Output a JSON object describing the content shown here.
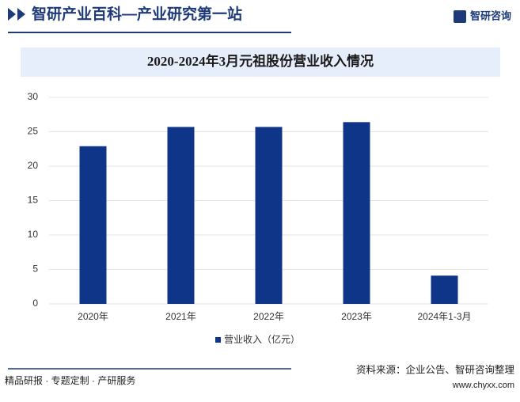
{
  "header": {
    "slogan": "智研产业百科—产业研究第一站",
    "brand": "智研咨询"
  },
  "chart_data": {
    "type": "bar",
    "title": "2020-2024年3月元祖股份营业收入情况",
    "categories": [
      "2020年",
      "2021年",
      "2022年",
      "2023年",
      "2024年1-3月"
    ],
    "series": [
      {
        "name": "营业收入（亿元）",
        "color": "#0e3587",
        "values": [
          22.9,
          25.7,
          25.7,
          26.4,
          4.1
        ]
      }
    ],
    "ylim": [
      0,
      30
    ],
    "yticks": [
      0,
      5,
      10,
      15,
      20,
      25,
      30
    ],
    "grid": true,
    "legend": "bottom"
  },
  "footer": {
    "services": "精品研报 · 专题定制 · 产研服务",
    "source": "资料来源：企业公告、智研咨询整理",
    "url": "www.chyxx.com"
  }
}
